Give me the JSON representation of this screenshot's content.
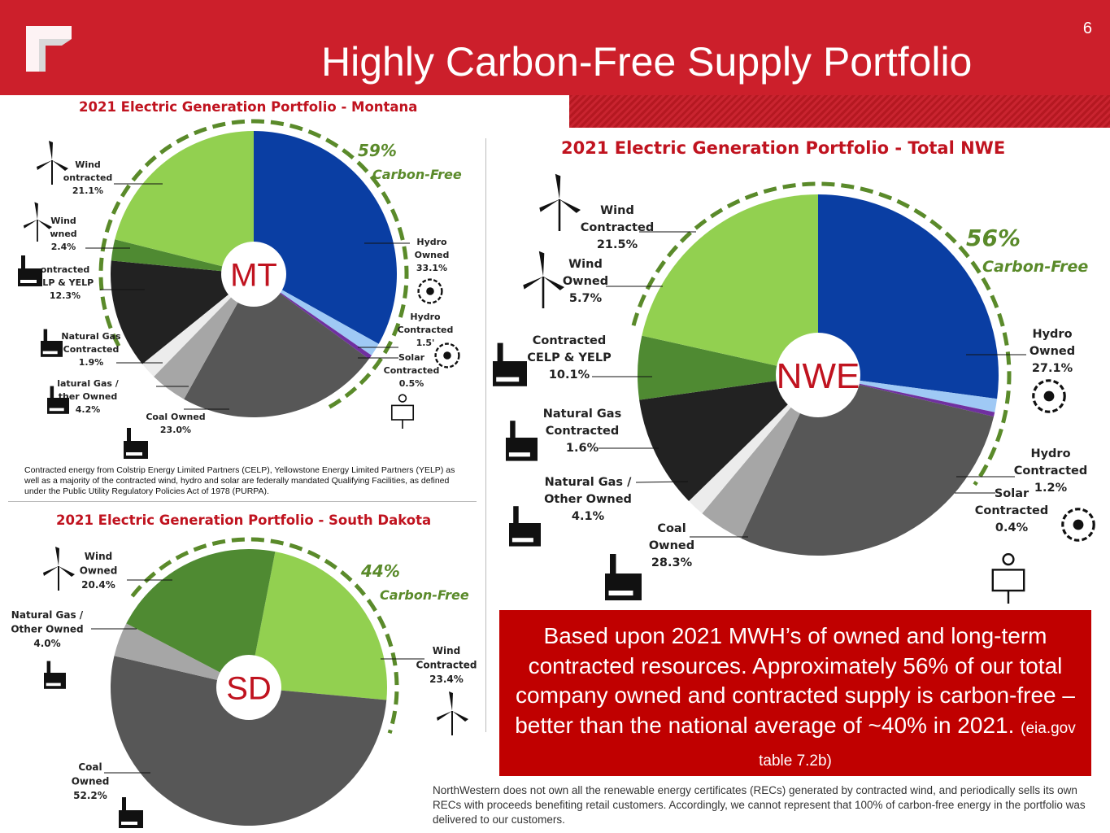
{
  "header": {
    "title": "Highly Carbon-Free Supply Portfolio",
    "page_number": "6"
  },
  "colors": {
    "brand_red": "#cc1f2b",
    "callout_red": "#c00000",
    "carbon_free_green": "#5a8a2a"
  },
  "chart_data": [
    {
      "type": "pie",
      "id": "mt",
      "title": "2021 Electric Generation Portfolio - Montana",
      "center_label": "MT",
      "carbon_free": {
        "percent": "59%",
        "label": "Carbon-Free"
      },
      "slices": [
        {
          "name": "Hydro Owned",
          "value": 33.1,
          "label": [
            "Hydro",
            "Owned",
            "33.1%"
          ],
          "color": "#0a3ea3"
        },
        {
          "name": "Hydro Contracted",
          "value": 1.5,
          "label": [
            "Hydro",
            "Contracted",
            "1.5'"
          ],
          "color": "#9fc9f5"
        },
        {
          "name": "Solar Contracted",
          "value": 0.5,
          "label": [
            "Solar",
            "Contracted",
            "0.5%"
          ],
          "color": "#7030a0"
        },
        {
          "name": "Coal Owned",
          "value": 23.0,
          "label": [
            "Coal Owned",
            "23.0%"
          ],
          "color": "#575757"
        },
        {
          "name": "Natural Gas / Other Owned",
          "value": 4.2,
          "label": [
            "latural Gas /",
            "ther Owned",
            "4.2%"
          ],
          "color": "#a6a6a6"
        },
        {
          "name": "Natural Gas Contracted",
          "value": 1.9,
          "label": [
            "Natural Gas",
            "Contracted",
            "1.9%"
          ],
          "color": "#ececec"
        },
        {
          "name": "Contracted CELP & YELP",
          "value": 12.3,
          "label": [
            "ontracted",
            "ELP & YELP",
            "12.3%"
          ],
          "color": "#222222"
        },
        {
          "name": "Wind Owned",
          "value": 2.4,
          "label": [
            "Wind",
            "wned",
            "2.4%"
          ],
          "color": "#4f8a32"
        },
        {
          "name": "Wind Contracted",
          "value": 21.1,
          "label": [
            "Wind",
            "ontracted",
            "21.1%"
          ],
          "color": "#92d050"
        }
      ],
      "footnote": "Contracted energy from Colstrip Energy Limited Partners (CELP), Yellowstone Energy Limited Partners (YELP) as well as a majority of the contracted wind, hydro and solar are federally mandated Qualifying Facilities, as defined under the Public Utility Regulatory Policies Act of 1978 (PURPA)."
    },
    {
      "type": "pie",
      "id": "nwe",
      "title": "2021 Electric Generation Portfolio - Total NWE",
      "center_label": "NWE",
      "carbon_free": {
        "percent": "56%",
        "label": "Carbon-Free"
      },
      "slices": [
        {
          "name": "Hydro Owned",
          "value": 27.1,
          "label": [
            "Hydro",
            "Owned",
            "27.1%"
          ],
          "color": "#0a3ea3"
        },
        {
          "name": "Hydro Contracted",
          "value": 1.2,
          "label": [
            "Hydro",
            "Contracted",
            "1.2%"
          ],
          "color": "#9fc9f5"
        },
        {
          "name": "Solar Contracted",
          "value": 0.4,
          "label": [
            "Solar",
            "Contracted",
            "0.4%"
          ],
          "color": "#7030a0"
        },
        {
          "name": "Coal Owned",
          "value": 28.3,
          "label": [
            "Coal",
            "Owned",
            "28.3%"
          ],
          "color": "#575757"
        },
        {
          "name": "Natural Gas / Other Owned",
          "value": 4.1,
          "label": [
            "Natural Gas /",
            "Other Owned",
            "4.1%"
          ],
          "color": "#a6a6a6"
        },
        {
          "name": "Natural Gas Contracted",
          "value": 1.6,
          "label": [
            "Natural Gas",
            "Contracted",
            "1.6%"
          ],
          "color": "#ececec"
        },
        {
          "name": "Contracted CELP & YELP",
          "value": 10.1,
          "label": [
            "Contracted",
            "CELP & YELP",
            "10.1%"
          ],
          "color": "#222222"
        },
        {
          "name": "Wind Owned",
          "value": 5.7,
          "label": [
            "Wind",
            "Owned",
            "5.7%"
          ],
          "color": "#4f8a32"
        },
        {
          "name": "Wind Contracted",
          "value": 21.5,
          "label": [
            "Wind",
            "Contracted",
            "21.5%"
          ],
          "color": "#92d050"
        }
      ]
    },
    {
      "type": "pie",
      "id": "sd",
      "title": "2021 Electric Generation Portfolio - South Dakota",
      "center_label": "SD",
      "carbon_free": {
        "percent": "44%",
        "label": "Carbon-Free"
      },
      "slices": [
        {
          "name": "Wind Contracted",
          "value": 23.4,
          "label": [
            "Wind",
            "Contracted",
            "23.4%"
          ],
          "color": "#92d050"
        },
        {
          "name": "Coal Owned",
          "value": 52.2,
          "label": [
            "Coal",
            "Owned",
            "52.2%"
          ],
          "color": "#575757"
        },
        {
          "name": "Natural Gas / Other Owned",
          "value": 4.0,
          "label": [
            "Natural Gas /",
            "Other Owned",
            "4.0%"
          ],
          "color": "#a6a6a6"
        },
        {
          "name": "Wind Owned",
          "value": 20.4,
          "label": [
            "Wind",
            "Owned",
            "20.4%"
          ],
          "color": "#4f8a32"
        }
      ]
    }
  ],
  "callout": {
    "text": "Based upon 2021 MWH’s of owned and long-term contracted resources.  Approximately 56% of our total company owned and contracted supply is carbon-free – better than the national average of ~40% in 2021.",
    "source": "(eia.gov table 7.2b)"
  },
  "footnote_bottom": "NorthWestern does not own all the renewable energy certificates (RECs) generated by contracted wind, and periodically sells its own RECs with proceeds benefiting retail customers. Accordingly, we cannot represent that 100% of carbon-free energy in the portfolio was delivered to our customers."
}
